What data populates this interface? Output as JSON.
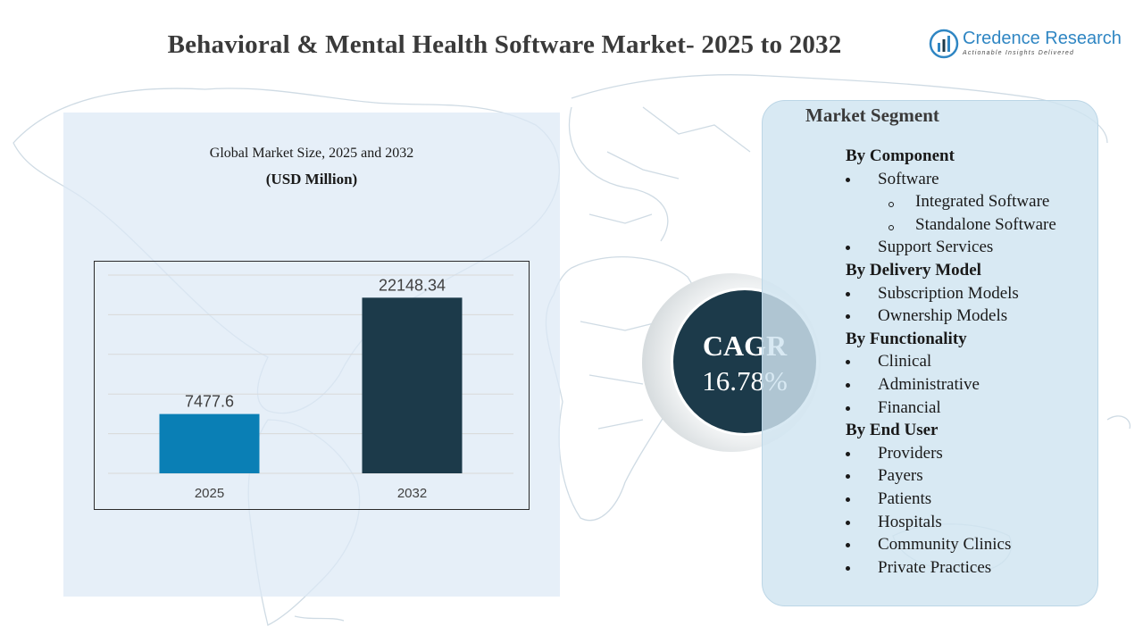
{
  "title": "Behavioral & Mental Health Software Market- 2025 to 2032",
  "logo": {
    "name": "Credence Research",
    "tagline": "Actionable Insights Delivered",
    "icon": "credence-logo-icon"
  },
  "chart": {
    "title": "Global Market Size, 2025 and 2032",
    "subtitle": "(USD Million)"
  },
  "chart_data": {
    "type": "bar",
    "categories": [
      "2025",
      "2032"
    ],
    "values": [
      7477.6,
      22148.34
    ],
    "value_labels": [
      "7477.6",
      "22148.34"
    ],
    "colors": [
      "#0a7fb5",
      "#1c3a4a"
    ],
    "title": "Global Market Size, 2025 and 2032",
    "ylabel": "(USD Million)",
    "ylim": [
      0,
      25000
    ],
    "grid": true
  },
  "cagr": {
    "label": "CAGR",
    "value": "16.78%"
  },
  "segments": {
    "title": "Market Segment",
    "rows": [
      {
        "kind": "head",
        "text": "By Component"
      },
      {
        "kind": "item",
        "text": "Software"
      },
      {
        "kind": "sub",
        "text": "Integrated  Software"
      },
      {
        "kind": "sub",
        "text": "Standalone  Software"
      },
      {
        "kind": "item",
        "text": "Support Services"
      },
      {
        "kind": "head",
        "text": "By Delivery  Model"
      },
      {
        "kind": "item",
        "text": "Subscription Models"
      },
      {
        "kind": "item",
        "text": "Ownership Models"
      },
      {
        "kind": "head",
        "text": "By Functionality"
      },
      {
        "kind": "item",
        "text": "Clinical"
      },
      {
        "kind": "item",
        "text": "Administrative"
      },
      {
        "kind": "item",
        "text": "Financial"
      },
      {
        "kind": "head",
        "text": "By End User"
      },
      {
        "kind": "item",
        "text": "Providers"
      },
      {
        "kind": "item",
        "text": "Payers"
      },
      {
        "kind": "item",
        "text": "Patients"
      },
      {
        "kind": "item",
        "text": "Hospitals"
      },
      {
        "kind": "item",
        "text": "Community Clinics"
      },
      {
        "kind": "item",
        "text": "Private Practices"
      }
    ]
  }
}
